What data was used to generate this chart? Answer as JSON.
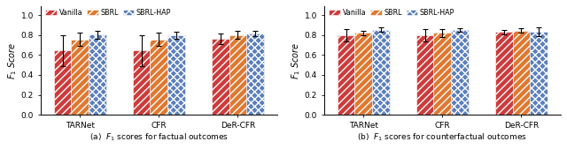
{
  "subplot_a": {
    "title": "(a)  $F_1$ scores for factual outcomes",
    "groups": [
      "TARNet",
      "CFR",
      "DeR-CFR"
    ],
    "values": [
      [
        0.645,
        0.755,
        0.805
      ],
      [
        0.645,
        0.755,
        0.8
      ],
      [
        0.76,
        0.8,
        0.815
      ]
    ],
    "errors": [
      [
        0.155,
        0.065,
        0.04
      ],
      [
        0.155,
        0.065,
        0.035
      ],
      [
        0.055,
        0.04,
        0.025
      ]
    ]
  },
  "subplot_b": {
    "title": "(b)  $F_1$ scores for counterfactual outcomes",
    "groups": [
      "TARNet",
      "CFR",
      "DeR-CFR"
    ],
    "values": [
      [
        0.8,
        0.82,
        0.855
      ],
      [
        0.8,
        0.82,
        0.85
      ],
      [
        0.83,
        0.845,
        0.835
      ]
    ],
    "errors": [
      [
        0.06,
        0.025,
        0.02
      ],
      [
        0.06,
        0.04,
        0.015
      ],
      [
        0.025,
        0.02,
        0.045
      ]
    ]
  },
  "colors": [
    "#CD3B3B",
    "#E07830",
    "#5B7FBD"
  ],
  "hatches": [
    "////",
    "////",
    "...."
  ],
  "legend_labels": [
    "Vanilla",
    "SBRL",
    "SBRL-HAP"
  ],
  "ylabel": "$F_1$ Score",
  "ylim": [
    0.0,
    1.09
  ],
  "yticks": [
    0.0,
    0.2,
    0.4,
    0.6,
    0.8,
    1.0
  ],
  "bar_width": 0.22,
  "figsize": [
    6.4,
    1.69
  ],
  "dpi": 100
}
